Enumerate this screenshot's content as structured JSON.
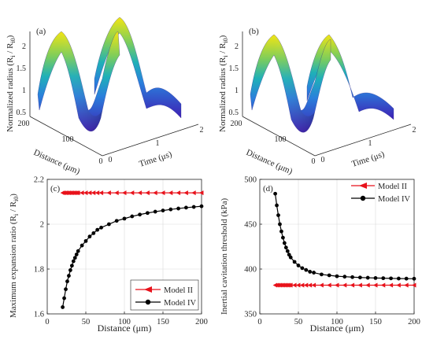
{
  "colors": {
    "model_ii": "#e8121b",
    "model_iv": "#000000",
    "axis": "#262626",
    "grid": "#d9d9d9",
    "surface_low": "#3e1fb4",
    "surface_mid": "#1fb0b8",
    "surface_high": "#f2e513"
  },
  "panels": {
    "a": {
      "label": "(a)"
    },
    "b": {
      "label": "(b)"
    },
    "c": {
      "label": "(c)"
    },
    "d": {
      "label": "(d)"
    }
  },
  "surface_axes": {
    "zlabel": "Normalized radius (R",
    "zlabel_sub1": "i",
    "zlabel_mid": " / R",
    "zlabel_sub2": "i0",
    "zlabel_end": ")",
    "ylabel": "Distance (μm)",
    "xlabel": "Time (μs)",
    "z_ticks": [
      "0.5",
      "1",
      "1.5",
      "2"
    ],
    "distance_ticks": [
      "0",
      "100",
      "200"
    ],
    "time_ticks": [
      "0",
      "1",
      "2"
    ]
  },
  "chart_data": [
    {
      "panel": "a",
      "type": "surface",
      "xlabel": "Time (μs)",
      "ylabel": "Distance (μm)",
      "zlabel": "Normalized radius (Ri / Ri0)",
      "xlim": [
        0,
        2
      ],
      "ylim": [
        0,
        200
      ],
      "zlim": [
        0.5,
        2.2
      ],
      "peaks_time_us": [
        0.4,
        1.3
      ],
      "peak_value": 2.14,
      "min_value": 0.5
    },
    {
      "panel": "b",
      "type": "surface",
      "xlabel": "Time (μs)",
      "ylabel": "Distance (μm)",
      "zlabel": "Normalized radius (Ri / Ri0)",
      "xlim": [
        0,
        2
      ],
      "ylim": [
        0,
        200
      ],
      "zlim": [
        0.5,
        2.2
      ],
      "peaks_time_us": [
        0.4,
        1.3
      ],
      "peak_value_range": [
        1.63,
        2.08
      ],
      "min_value": 0.5
    },
    {
      "panel": "c",
      "type": "line",
      "xlabel": "Distance (μm)",
      "ylabel": "Maximum expansion ratio (R",
      "ylabel_sub1": "i",
      "ylabel_mid": " / R",
      "ylabel_sub2": "i0",
      "ylabel_end": ")",
      "xlim": [
        0,
        200
      ],
      "ylim": [
        1.6,
        2.2
      ],
      "xticks": [
        0,
        50,
        100,
        150,
        200
      ],
      "yticks": [
        1.6,
        1.8,
        2.0,
        2.2
      ],
      "xtick_labels": [
        "0",
        "50",
        "100",
        "150",
        "200"
      ],
      "ytick_labels": [
        "1.6",
        "1.8",
        "2",
        "2.2"
      ],
      "grid": true,
      "legend": "bottom-right",
      "series": [
        {
          "name": "Model II",
          "marker": "triangle-left",
          "x": [
            20,
            22,
            24,
            26,
            28,
            30,
            32,
            34,
            36,
            38,
            40,
            45,
            50,
            55,
            60,
            65,
            70,
            80,
            90,
            100,
            110,
            120,
            130,
            140,
            150,
            160,
            170,
            180,
            190,
            200
          ],
          "y": [
            2.14,
            2.14,
            2.14,
            2.14,
            2.14,
            2.14,
            2.14,
            2.14,
            2.14,
            2.14,
            2.14,
            2.14,
            2.14,
            2.14,
            2.14,
            2.14,
            2.14,
            2.14,
            2.14,
            2.14,
            2.14,
            2.14,
            2.14,
            2.14,
            2.14,
            2.14,
            2.14,
            2.14,
            2.14,
            2.14
          ]
        },
        {
          "name": "Model IV",
          "marker": "circle",
          "x": [
            20,
            22,
            24,
            26,
            28,
            30,
            32,
            34,
            36,
            38,
            40,
            45,
            50,
            55,
            60,
            65,
            70,
            80,
            90,
            100,
            110,
            120,
            130,
            140,
            150,
            160,
            170,
            180,
            190,
            200
          ],
          "y": [
            1.63,
            1.67,
            1.71,
            1.745,
            1.77,
            1.795,
            1.815,
            1.835,
            1.85,
            1.865,
            1.88,
            1.905,
            1.925,
            1.945,
            1.96,
            1.975,
            1.985,
            2.0,
            2.015,
            2.025,
            2.035,
            2.043,
            2.05,
            2.056,
            2.061,
            2.066,
            2.07,
            2.074,
            2.077,
            2.08
          ]
        }
      ]
    },
    {
      "panel": "d",
      "type": "line",
      "xlabel": "Distance (μm)",
      "ylabel": "Inertial cavitation threshold (kPa)",
      "xlim": [
        0,
        200
      ],
      "ylim": [
        350,
        500
      ],
      "xticks": [
        0,
        50,
        100,
        150,
        200
      ],
      "yticks": [
        350,
        400,
        450,
        500
      ],
      "xtick_labels": [
        "0",
        "50",
        "100",
        "150",
        "200"
      ],
      "ytick_labels": [
        "350",
        "400",
        "450",
        "500"
      ],
      "grid": true,
      "legend": "top-right",
      "series": [
        {
          "name": "Model II",
          "marker": "triangle-left",
          "x": [
            20,
            22,
            24,
            26,
            28,
            30,
            32,
            34,
            36,
            38,
            40,
            45,
            50,
            55,
            60,
            65,
            70,
            80,
            90,
            100,
            110,
            120,
            130,
            140,
            150,
            160,
            170,
            180,
            190,
            200
          ],
          "y": [
            382,
            382,
            382,
            382,
            382,
            382,
            382,
            382,
            382,
            382,
            382,
            382,
            382,
            382,
            382,
            382,
            382,
            382,
            382,
            382,
            382,
            382,
            382,
            382,
            382,
            382,
            382,
            382,
            382,
            382
          ]
        },
        {
          "name": "Model IV",
          "marker": "circle",
          "x": [
            20,
            22,
            24,
            26,
            28,
            30,
            32,
            34,
            36,
            38,
            40,
            45,
            50,
            55,
            60,
            65,
            70,
            80,
            90,
            100,
            110,
            120,
            130,
            140,
            150,
            160,
            170,
            180,
            190,
            200
          ],
          "y": [
            484,
            471,
            460,
            450,
            442,
            435,
            429,
            424,
            420,
            416,
            413,
            408,
            404,
            401,
            399,
            397,
            396,
            394,
            393,
            392,
            391.5,
            391,
            390.6,
            390.3,
            390,
            389.8,
            389.6,
            389.4,
            389.3,
            389.2
          ]
        }
      ]
    }
  ]
}
